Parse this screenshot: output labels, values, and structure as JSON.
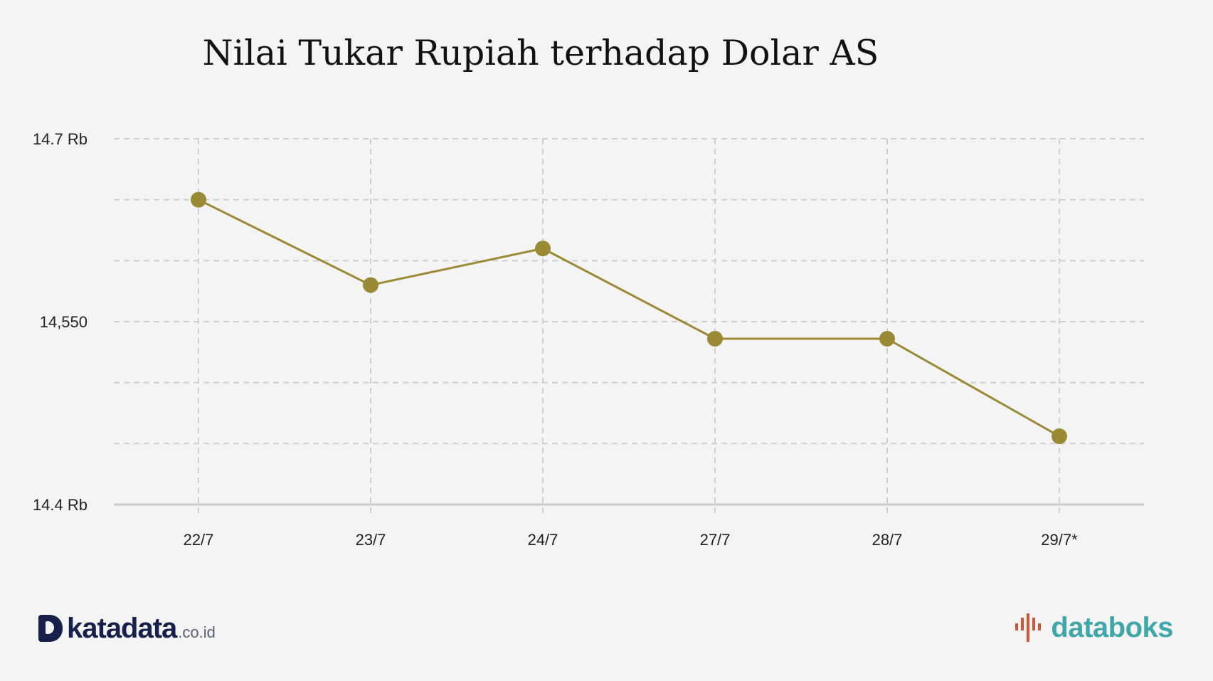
{
  "chart_data": {
    "type": "line",
    "title": "Nilai Tukar Rupiah terhadap Dolar AS",
    "categories": [
      "22/7",
      "23/7",
      "24/7",
      "27/7",
      "28/7",
      "29/7*"
    ],
    "series": [
      {
        "values": [
          14650,
          14580,
          14610,
          14536,
          14536,
          14456
        ],
        "color": "#9b8a35"
      }
    ],
    "ylim": [
      14400,
      14700
    ],
    "ytick_values": [
      14400,
      14550,
      14700
    ],
    "ytick_labels": [
      "14.4 Rb",
      "14,550",
      "14.7 Rb"
    ],
    "gridline_values": [
      14450,
      14500,
      14600,
      14650
    ],
    "grid": true,
    "xlabel": "",
    "ylabel": ""
  },
  "branding": {
    "left_logo": "katadata",
    "left_logo_tld": ".co.id",
    "right_logo": "databoks",
    "right_logo_icon": "databoks-bars-icon"
  },
  "colors": {
    "background": "#f4f4f4",
    "line": "#9b8a35",
    "grid": "#cfcfcf",
    "katadata_navy": "#16204a",
    "databoks_teal": "#3fa7a7",
    "databoks_red": "#d2553a"
  }
}
